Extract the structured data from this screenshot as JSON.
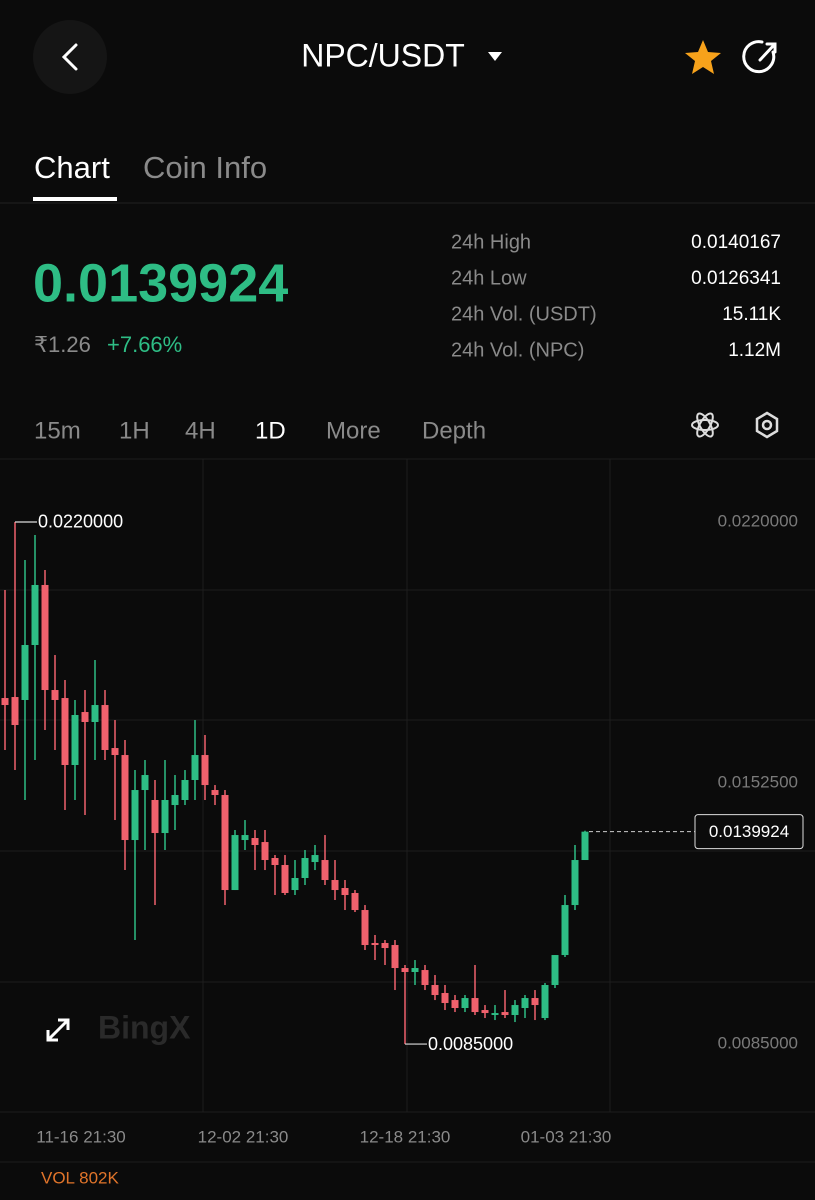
{
  "header": {
    "title": "NPC/USDT"
  },
  "tabs": [
    "Chart",
    "Coin Info"
  ],
  "price": {
    "last": "0.0139924",
    "fiat": "₹1.26",
    "change": "+7.66%"
  },
  "stats": [
    {
      "label": "24h High",
      "value": "0.0140167"
    },
    {
      "label": "24h Low",
      "value": "0.0126341"
    },
    {
      "label": "24h Vol. (USDT)",
      "value": "15.11K"
    },
    {
      "label": "24h Vol. (NPC)",
      "value": "1.12M"
    }
  ],
  "timeframes": [
    "15m",
    "1H",
    "4H",
    "1D",
    "More",
    "Depth"
  ],
  "chart_data": {
    "type": "candlestick",
    "up_color": "#2ebd85",
    "down_color": "#f0616d",
    "open": [
      0.017448,
      0.017474,
      0.017397,
      0.018819,
      0.020371,
      0.017655,
      0.017448,
      0.015716,
      0.017086,
      0.016828,
      0.017267,
      0.016155,
      0.015974,
      0.013776,
      0.015069,
      0.014811,
      0.013957,
      0.014681,
      0.014811,
      0.015328,
      0.015974,
      0.015069,
      0.01494,
      0.012483,
      0.013776,
      0.013828,
      0.013724,
      0.013311,
      0.01313,
      0.012483,
      0.012794,
      0.013207,
      0.013259,
      0.012742,
      0.012535,
      0.012406,
      0.011966,
      0.011113,
      0.011113,
      0.011061,
      0.010466,
      0.010363,
      0.010414,
      0.010027,
      0.00982,
      0.009638,
      0.009432,
      0.00969,
      0.00938,
      0.009251,
      0.009328,
      0.009251,
      0.009432,
      0.00969,
      0.009173,
      0.010027,
      0.010802,
      0.012095,
      0.013259
    ],
    "high": [
      0.020241,
      0.022,
      0.021017,
      0.021664,
      0.020759,
      0.01856,
      0.017914,
      0.017397,
      0.017655,
      0.018431,
      0.017655,
      0.016879,
      0.016362,
      0.015586,
      0.015845,
      0.015328,
      0.015845,
      0.015457,
      0.015586,
      0.016879,
      0.016492,
      0.015198,
      0.015069,
      0.014035,
      0.014293,
      0.014035,
      0.014035,
      0.013388,
      0.013388,
      0.013259,
      0.013518,
      0.013647,
      0.013905,
      0.013259,
      0.012742,
      0.012483,
      0.012095,
      0.01132,
      0.01119,
      0.01119,
      0.010544,
      0.010673,
      0.010544,
      0.010285,
      0.010027,
      0.009768,
      0.009768,
      0.010544,
      0.009509,
      0.009509,
      0.009897,
      0.009638,
      0.009768,
      0.009897,
      0.010078,
      0.010802,
      0.012354,
      0.013647,
      0.0140167
    ],
    "low": [
      0.016104,
      0.015586,
      0.014811,
      0.015845,
      0.016621,
      0.016104,
      0.014552,
      0.014811,
      0.014423,
      0.015845,
      0.015845,
      0.014293,
      0.013,
      0.01119,
      0.013518,
      0.012095,
      0.013518,
      0.014035,
      0.014681,
      0.014811,
      0.014811,
      0.014681,
      0.012095,
      0.012483,
      0.013518,
      0.013,
      0.013,
      0.012354,
      0.012354,
      0.012354,
      0.012613,
      0.013,
      0.012613,
      0.012225,
      0.011966,
      0.011914,
      0.010932,
      0.010673,
      0.010544,
      0.009897,
      0.0085,
      0.010027,
      0.009897,
      0.009638,
      0.00938,
      0.009328,
      0.009328,
      0.009251,
      0.009173,
      0.009121,
      0.009173,
      0.009069,
      0.009173,
      0.009121,
      0.009121,
      0.009949,
      0.010751,
      0.011966,
      0.013259
    ],
    "close": [
      0.017267,
      0.01675,
      0.018819,
      0.020371,
      0.017655,
      0.017397,
      0.015716,
      0.017009,
      0.016828,
      0.017267,
      0.016104,
      0.015974,
      0.013776,
      0.015069,
      0.015457,
      0.013957,
      0.014811,
      0.01494,
      0.015328,
      0.015974,
      0.015198,
      0.01494,
      0.012483,
      0.013905,
      0.013905,
      0.013647,
      0.013259,
      0.01313,
      0.012406,
      0.012794,
      0.013311,
      0.013388,
      0.012742,
      0.012483,
      0.012354,
      0.011966,
      0.011061,
      0.011061,
      0.010983,
      0.010466,
      0.010363,
      0.010466,
      0.010027,
      0.009768,
      0.009561,
      0.009432,
      0.00969,
      0.009328,
      0.009302,
      0.009302,
      0.009251,
      0.009509,
      0.00969,
      0.009509,
      0.010027,
      0.010802,
      0.012095,
      0.013259,
      0.0139924
    ],
    "ylim": [
      0.006743,
      0.023603
    ],
    "yticks": [
      {
        "value": 0.022,
        "label": "0.0220000"
      },
      {
        "value": 0.01525,
        "label": "0.0152500"
      },
      {
        "value": 0.0085,
        "label": "0.0085000"
      }
    ],
    "xlim": [
      -0.5,
      81
    ],
    "xticks": [
      {
        "value": 7.6,
        "label": "11-16 21:30"
      },
      {
        "value": 23.8,
        "label": "12-02 21:30"
      },
      {
        "value": 40,
        "label": "12-18 21:30"
      },
      {
        "value": 56.1,
        "label": "01-03 21:30"
      }
    ],
    "annotations": [
      {
        "value": 0.022,
        "label": "0.0220000"
      },
      {
        "value": 0.0085,
        "label": "0.0085000"
      }
    ],
    "last_price": 0.0139924,
    "watermark": "BingX",
    "volume_label": "VOL 802K"
  }
}
